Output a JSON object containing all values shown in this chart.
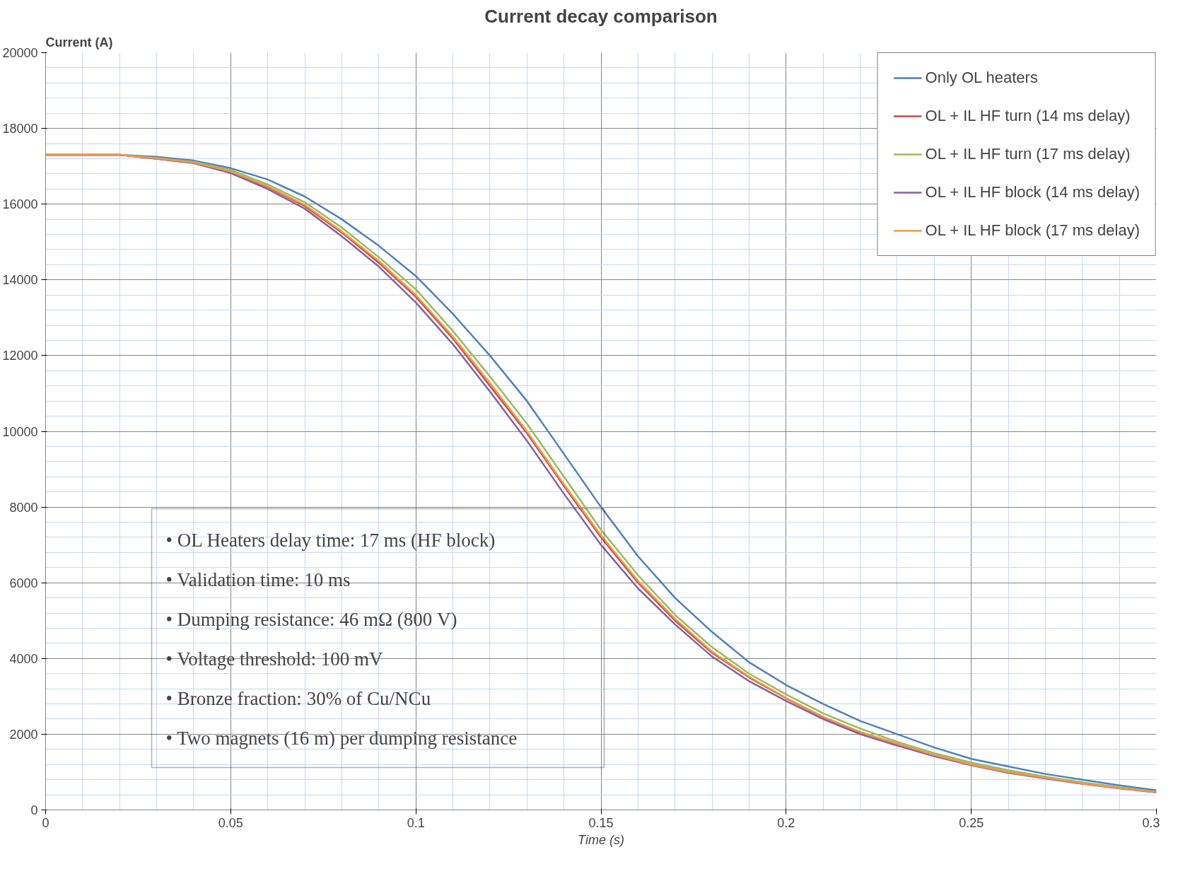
{
  "chart_data": {
    "type": "line",
    "title": "Current decay comparison",
    "xlabel": "Time (s)",
    "ylabel": "Current (A)",
    "x": [
      0,
      0.01,
      0.02,
      0.03,
      0.04,
      0.05,
      0.06,
      0.07,
      0.08,
      0.09,
      0.1,
      0.11,
      0.12,
      0.13,
      0.14,
      0.15,
      0.16,
      0.17,
      0.18,
      0.19,
      0.2,
      0.21,
      0.22,
      0.23,
      0.24,
      0.25,
      0.26,
      0.27,
      0.28,
      0.29,
      0.3
    ],
    "series": [
      {
        "name": "Only OL heaters",
        "color": "#4f81bd",
        "values": [
          17300,
          17300,
          17300,
          17250,
          17150,
          16950,
          16650,
          16200,
          15600,
          14900,
          14100,
          13100,
          12000,
          10800,
          9400,
          8000,
          6700,
          5600,
          4700,
          3900,
          3300,
          2800,
          2350,
          2000,
          1650,
          1350,
          1150,
          950,
          800,
          650,
          520
        ]
      },
      {
        "name": "OL + IL HF turn (14 ms delay)",
        "color": "#c0504d",
        "values": [
          17300,
          17300,
          17300,
          17200,
          17100,
          16850,
          16450,
          15950,
          15250,
          14450,
          13550,
          12450,
          11200,
          9950,
          8550,
          7200,
          6000,
          5000,
          4150,
          3500,
          2950,
          2450,
          2050,
          1750,
          1450,
          1200,
          1000,
          850,
          700,
          580,
          470
        ]
      },
      {
        "name": "OL + IL HF turn (17 ms delay)",
        "color": "#9bbb59",
        "values": [
          17300,
          17300,
          17300,
          17220,
          17120,
          16900,
          16520,
          16050,
          15380,
          14600,
          13750,
          12650,
          11450,
          10200,
          8800,
          7400,
          6200,
          5150,
          4300,
          3600,
          3050,
          2550,
          2150,
          1800,
          1500,
          1250,
          1050,
          880,
          730,
          600,
          480
        ]
      },
      {
        "name": "OL + IL HF block (14 ms delay)",
        "color": "#8064a2",
        "values": [
          17300,
          17300,
          17300,
          17200,
          17080,
          16820,
          16400,
          15880,
          15150,
          14350,
          13400,
          12300,
          11050,
          9750,
          8350,
          7000,
          5850,
          4900,
          4050,
          3400,
          2880,
          2400,
          2000,
          1700,
          1420,
          1180,
          980,
          830,
          690,
          570,
          460
        ]
      },
      {
        "name": "OL + IL HF block (17 ms delay)",
        "color": "#f79646",
        "values": [
          17300,
          17300,
          17300,
          17210,
          17100,
          16860,
          16470,
          15980,
          15280,
          14500,
          13600,
          12500,
          11280,
          10000,
          8600,
          7250,
          6050,
          5050,
          4180,
          3520,
          2960,
          2460,
          2060,
          1750,
          1450,
          1200,
          1000,
          850,
          700,
          580,
          470
        ]
      }
    ],
    "xlim": [
      0,
      0.3
    ],
    "xticks": [
      0,
      0.05,
      0.1,
      0.15,
      0.2,
      0.25,
      0.3
    ],
    "ylim": [
      0,
      20000
    ],
    "yticks": [
      0,
      2000,
      4000,
      6000,
      8000,
      10000,
      12000,
      14000,
      16000,
      18000,
      20000
    ],
    "grid": true,
    "legend": "top right",
    "marker": "none",
    "line_style": "solid",
    "annotations": [
      "• OL Heaters delay time: 17 ms (HF block)",
      "• Validation time: 10 ms",
      "• Dumping resistance: 46 mΩ (800 V)",
      "• Voltage threshold: 100 mV",
      "• Bronze fraction: 30% of Cu/NCu",
      "• Two magnets (16 m) per dumping resistance"
    ]
  }
}
